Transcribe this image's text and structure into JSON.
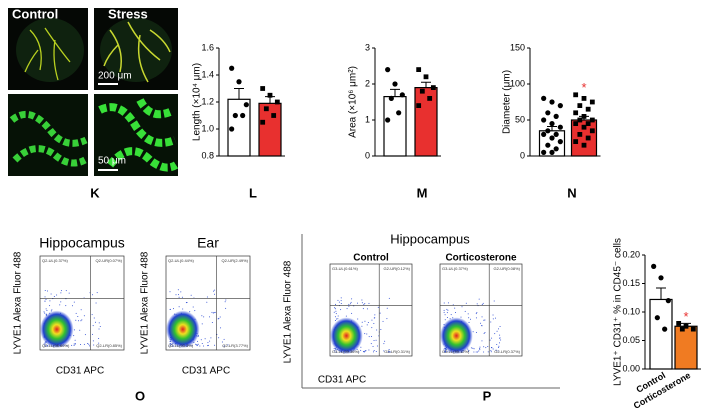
{
  "panel_k": {
    "letter": "K",
    "labels": [
      "Control",
      "Stress"
    ],
    "scale_bars": [
      "200 μm",
      "50 μm"
    ]
  },
  "chart_data": [
    {
      "type": "bar",
      "panel_label": "L",
      "ylabel": "Length (×10⁴ μm)",
      "categories": [
        null,
        null
      ],
      "values": [
        1.22,
        1.19
      ],
      "errors": [
        0.08,
        0.05
      ],
      "points": [
        [
          1.45,
          1.35,
          1.18,
          1.1,
          1.1,
          1.0
        ],
        [
          1.3,
          1.25,
          1.2,
          1.15,
          1.1,
          1.05
        ]
      ],
      "colors": [
        "#ffffff",
        "#e8302f"
      ],
      "ylim": [
        0.8,
        1.6
      ],
      "yticks": [
        0.8,
        {
          "value": 1,
          "label": "1.0"
        },
        1.2,
        1.4,
        1.6
      ]
    },
    {
      "type": "bar",
      "panel_label": "M",
      "ylabel": "Area (×10⁶ μm²)",
      "categories": [
        null,
        null
      ],
      "values": [
        1.65,
        1.9
      ],
      "errors": [
        0.2,
        0.15
      ],
      "points": [
        [
          2.4,
          2.0,
          1.7,
          1.6,
          1.2,
          1.0
        ],
        [
          2.4,
          2.2,
          1.9,
          1.8,
          1.6,
          1.4
        ]
      ],
      "colors": [
        "#ffffff",
        "#e8302f"
      ],
      "ylim": [
        0,
        3
      ],
      "yticks": [
        0,
        1,
        2,
        3
      ]
    },
    {
      "type": "bar",
      "panel_label": "N",
      "ylabel": "Diameter (μm)",
      "categories": [
        null,
        null
      ],
      "values": [
        35,
        50
      ],
      "errors": [
        6,
        5
      ],
      "significance": [
        null,
        "*"
      ],
      "points": [
        [
          80,
          75,
          70,
          60,
          55,
          50,
          45,
          40,
          35,
          30,
          30,
          25,
          20,
          15,
          10,
          5,
          5
        ],
        [
          85,
          80,
          75,
          70,
          65,
          60,
          55,
          50,
          50,
          45,
          45,
          40,
          35,
          30,
          25,
          20,
          15
        ]
      ],
      "colors": [
        "#ffffff",
        "#e8302f"
      ],
      "ylim": [
        0,
        150
      ],
      "yticks": [
        0,
        50,
        100,
        150
      ]
    },
    {
      "type": "bar",
      "ylabel": "LYVE1⁺ CD31⁺ % in CD45⁻ cells",
      "categories": [
        "Control",
        "Corticosterone"
      ],
      "values": [
        0.122,
        0.075
      ],
      "errors": [
        0.02,
        0.005
      ],
      "significance": [
        null,
        "*"
      ],
      "points": [
        [
          0.18,
          0.16,
          0.12,
          0.09,
          0.07
        ],
        [
          0.08,
          0.075,
          0.07,
          0.07
        ]
      ],
      "colors": [
        "#ffffff",
        "#f07b22"
      ],
      "ylim": [
        0,
        0.2
      ],
      "yticks": [
        {
          "value": 0,
          "label": "0.00"
        },
        0.05,
        {
          "value": 0.1,
          "label": "0.10"
        },
        0.15,
        {
          "value": 0.2,
          "label": "0.20"
        }
      ]
    }
  ],
  "panel_o": {
    "letter": "O",
    "x_label": "CD31 APC",
    "y_label": "LYVE1 Alexa Fluor 488",
    "plots": [
      {
        "title": "Hippocampus",
        "quadrants": [
          "Q2-UL(0.37%)",
          "Q2-UR(0.07%)",
          "Q2-LL(98.80%)",
          "Q2-LR(0.85%)"
        ]
      },
      {
        "title": "Ear",
        "quadrants": [
          "Q2-UL(0.44%)",
          "Q2-UR(2.49%)",
          "Q2-LL(93.3%)",
          "Q2-LR(3.77%)"
        ]
      }
    ]
  },
  "panel_p": {
    "letter": "P",
    "title": "Hippocampus",
    "x_label": "CD31 APC",
    "y_label": "LYVE1 Alexa Fluor 488",
    "plots": [
      {
        "title": "Control",
        "quadrants": [
          "G3-UL(0.61%)",
          "G2-UR(0.12%)",
          "G3-LL(99.36%)",
          "G2-LR(0.31%)"
        ]
      },
      {
        "title": "Corticosterone",
        "quadrants": [
          "G3-UL(0.37%)",
          "G2-UR(0.08%)",
          "G3-LL(99.12%)",
          "G2-LR(0.37%)"
        ]
      }
    ]
  }
}
